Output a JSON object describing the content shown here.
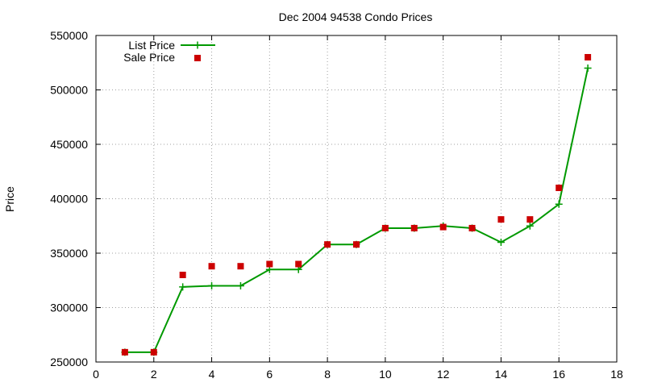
{
  "chart_data": {
    "type": "line",
    "title": "Dec 2004 94538 Condo Prices",
    "xlabel": "",
    "ylabel": "Price",
    "xlim": [
      0,
      18
    ],
    "ylim": [
      250000,
      550000
    ],
    "x_ticks": [
      0,
      2,
      4,
      6,
      8,
      10,
      12,
      14,
      16,
      18
    ],
    "y_ticks": [
      250000,
      300000,
      350000,
      400000,
      450000,
      500000,
      550000
    ],
    "grid": true,
    "legend_position": "top-left",
    "series": [
      {
        "name": "List Price",
        "kind": "line-with-plus-markers",
        "color": "#009900",
        "points": [
          [
            1,
            259000
          ],
          [
            2,
            259000
          ],
          [
            3,
            319000
          ],
          [
            4,
            320000
          ],
          [
            5,
            320000
          ],
          [
            6,
            335000
          ],
          [
            7,
            335000
          ],
          [
            8,
            358000
          ],
          [
            9,
            358000
          ],
          [
            10,
            373000
          ],
          [
            11,
            373000
          ],
          [
            12,
            375000
          ],
          [
            13,
            373000
          ],
          [
            14,
            360000
          ],
          [
            15,
            375000
          ],
          [
            16,
            395000
          ],
          [
            17,
            520000
          ]
        ]
      },
      {
        "name": "Sale Price",
        "kind": "square-markers",
        "color": "#cc0000",
        "points": [
          [
            1,
            259000
          ],
          [
            2,
            259000
          ],
          [
            3,
            330000
          ],
          [
            4,
            338000
          ],
          [
            5,
            338000
          ],
          [
            6,
            340000
          ],
          [
            7,
            340000
          ],
          [
            8,
            358000
          ],
          [
            9,
            358000
          ],
          [
            10,
            373000
          ],
          [
            11,
            373000
          ],
          [
            12,
            374000
          ],
          [
            13,
            373000
          ],
          [
            14,
            381000
          ],
          [
            15,
            381000
          ],
          [
            16,
            410000
          ],
          [
            17,
            530000
          ]
        ]
      }
    ]
  }
}
